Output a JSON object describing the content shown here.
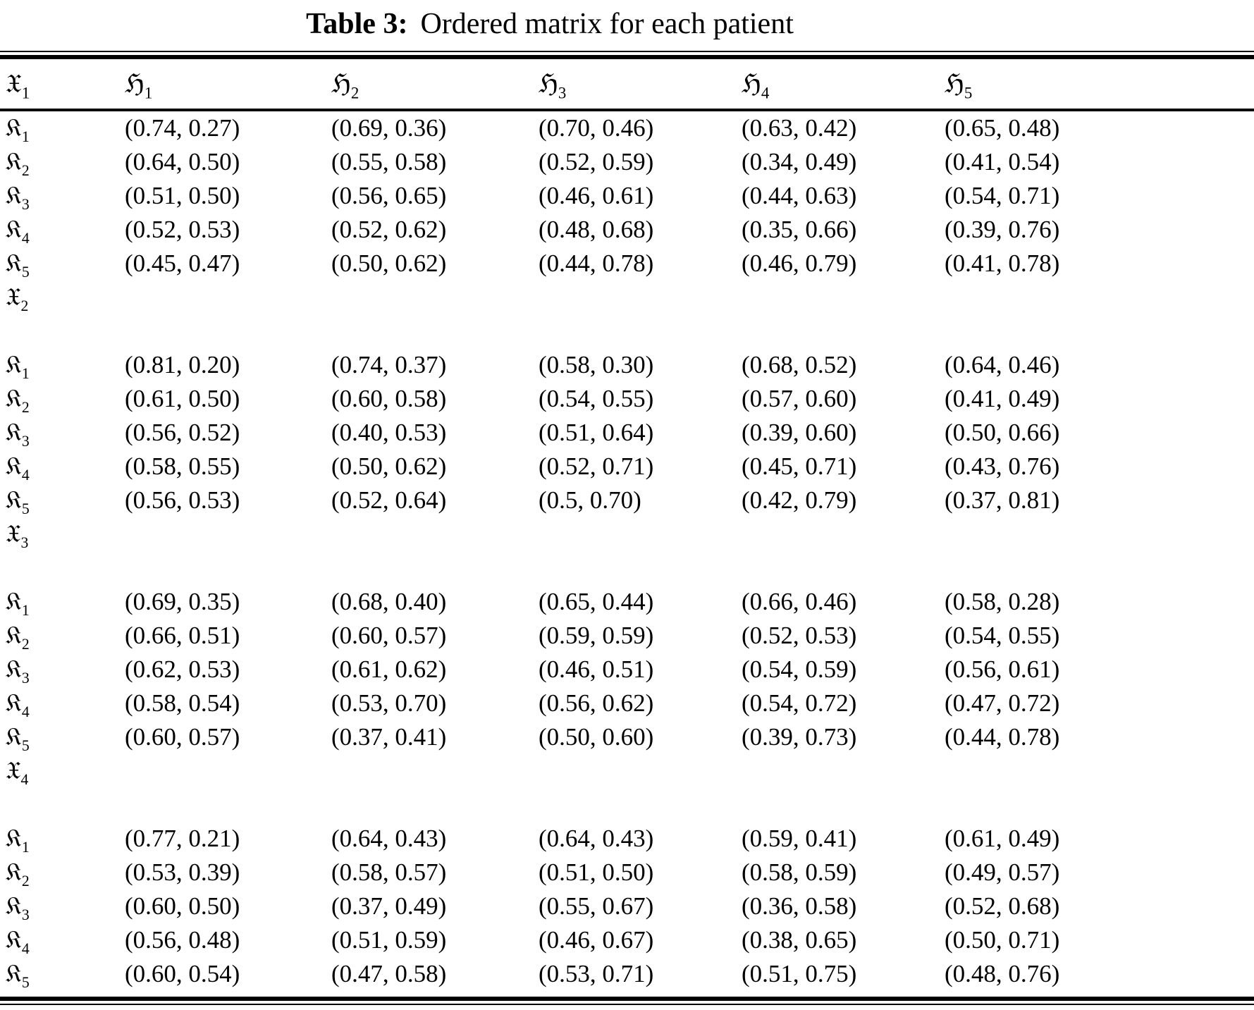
{
  "title": {
    "label": "Table 3:",
    "text": "Ordered matrix for each patient"
  },
  "table": {
    "header": {
      "row_label": {
        "base": "𝔛",
        "sub": "1"
      },
      "columns": [
        {
          "base": "ℌ",
          "sub": "1"
        },
        {
          "base": "ℌ",
          "sub": "2"
        },
        {
          "base": "ℌ",
          "sub": "3"
        },
        {
          "base": "ℌ",
          "sub": "4"
        },
        {
          "base": "ℌ",
          "sub": "5"
        }
      ]
    },
    "sections": [
      {
        "label": {
          "base": "𝔛",
          "sub": "1"
        },
        "label_in_header": true,
        "rows": [
          {
            "label": {
              "base": "𝔎",
              "sub": "1"
            },
            "cells": [
              "(0.74, 0.27)",
              "(0.69, 0.36)",
              "(0.70, 0.46)",
              "(0.63, 0.42)",
              "(0.65, 0.48)"
            ]
          },
          {
            "label": {
              "base": "𝔎",
              "sub": "2"
            },
            "cells": [
              "(0.64, 0.50)",
              "(0.55, 0.58)",
              "(0.52, 0.59)",
              "(0.34, 0.49)",
              "(0.41, 0.54)"
            ]
          },
          {
            "label": {
              "base": "𝔎",
              "sub": "3"
            },
            "cells": [
              "(0.51, 0.50)",
              "(0.56, 0.65)",
              "(0.46, 0.61)",
              "(0.44, 0.63)",
              "(0.54, 0.71)"
            ]
          },
          {
            "label": {
              "base": "𝔎",
              "sub": "4"
            },
            "cells": [
              "(0.52, 0.53)",
              "(0.52, 0.62)",
              "(0.48, 0.68)",
              "(0.35, 0.66)",
              "(0.39, 0.76)"
            ]
          },
          {
            "label": {
              "base": "𝔎",
              "sub": "5"
            },
            "cells": [
              "(0.45, 0.47)",
              "(0.50, 0.62)",
              "(0.44, 0.78)",
              "(0.46, 0.79)",
              "(0.41, 0.78)"
            ]
          }
        ]
      },
      {
        "label": {
          "base": "𝔛",
          "sub": "2"
        },
        "label_in_header": false,
        "rows": [
          {
            "label": {
              "base": "𝔎",
              "sub": "1"
            },
            "cells": [
              "(0.81, 0.20)",
              "(0.74, 0.37)",
              "(0.58, 0.30)",
              "(0.68, 0.52)",
              "(0.64, 0.46)"
            ]
          },
          {
            "label": {
              "base": "𝔎",
              "sub": "2"
            },
            "cells": [
              "(0.61, 0.50)",
              "(0.60, 0.58)",
              "(0.54, 0.55)",
              "(0.57, 0.60)",
              "(0.41, 0.49)"
            ]
          },
          {
            "label": {
              "base": "𝔎",
              "sub": "3"
            },
            "cells": [
              "(0.56, 0.52)",
              "(0.40, 0.53)",
              "(0.51, 0.64)",
              "(0.39, 0.60)",
              "(0.50, 0.66)"
            ]
          },
          {
            "label": {
              "base": "𝔎",
              "sub": "4"
            },
            "cells": [
              "(0.58, 0.55)",
              "(0.50, 0.62)",
              "(0.52, 0.71)",
              "(0.45, 0.71)",
              "(0.43, 0.76)"
            ]
          },
          {
            "label": {
              "base": "𝔎",
              "sub": "5"
            },
            "cells": [
              "(0.56, 0.53)",
              "(0.52, 0.64)",
              "(0.5, 0.70)",
              "(0.42, 0.79)",
              "(0.37, 0.81)"
            ]
          }
        ]
      },
      {
        "label": {
          "base": "𝔛",
          "sub": "3"
        },
        "label_in_header": false,
        "rows": [
          {
            "label": {
              "base": "𝔎",
              "sub": "1"
            },
            "cells": [
              "(0.69, 0.35)",
              "(0.68, 0.40)",
              "(0.65, 0.44)",
              "(0.66, 0.46)",
              "(0.58, 0.28)"
            ]
          },
          {
            "label": {
              "base": "𝔎",
              "sub": "2"
            },
            "cells": [
              "(0.66, 0.51)",
              "(0.60, 0.57)",
              "(0.59, 0.59)",
              "(0.52, 0.53)",
              "(0.54, 0.55)"
            ]
          },
          {
            "label": {
              "base": "𝔎",
              "sub": "3"
            },
            "cells": [
              "(0.62, 0.53)",
              "(0.61, 0.62)",
              "(0.46, 0.51)",
              "(0.54, 0.59)",
              "(0.56, 0.61)"
            ]
          },
          {
            "label": {
              "base": "𝔎",
              "sub": "4"
            },
            "cells": [
              "(0.58, 0.54)",
              "(0.53, 0.70)",
              "(0.56, 0.62)",
              "(0.54, 0.72)",
              "(0.47, 0.72)"
            ]
          },
          {
            "label": {
              "base": "𝔎",
              "sub": "5"
            },
            "cells": [
              "(0.60, 0.57)",
              "(0.37, 0.41)",
              "(0.50, 0.60)",
              "(0.39, 0.73)",
              "(0.44, 0.78)"
            ]
          }
        ]
      },
      {
        "label": {
          "base": "𝔛",
          "sub": "4"
        },
        "label_in_header": false,
        "rows": [
          {
            "label": {
              "base": "𝔎",
              "sub": "1"
            },
            "cells": [
              "(0.77, 0.21)",
              "(0.64, 0.43)",
              "(0.64, 0.43)",
              "(0.59, 0.41)",
              "(0.61, 0.49)"
            ]
          },
          {
            "label": {
              "base": "𝔎",
              "sub": "2"
            },
            "cells": [
              "(0.53, 0.39)",
              "(0.58, 0.57)",
              "(0.51, 0.50)",
              "(0.58, 0.59)",
              "(0.49, 0.57)"
            ]
          },
          {
            "label": {
              "base": "𝔎",
              "sub": "3"
            },
            "cells": [
              "(0.60, 0.50)",
              "(0.37, 0.49)",
              "(0.55, 0.67)",
              "(0.36, 0.58)",
              "(0.52, 0.68)"
            ]
          },
          {
            "label": {
              "base": "𝔎",
              "sub": "4"
            },
            "cells": [
              "(0.56, 0.48)",
              "(0.51, 0.59)",
              "(0.46, 0.67)",
              "(0.38, 0.65)",
              "(0.50, 0.71)"
            ]
          },
          {
            "label": {
              "base": "𝔎",
              "sub": "5"
            },
            "cells": [
              "(0.60, 0.54)",
              "(0.47, 0.58)",
              "(0.53, 0.71)",
              "(0.51, 0.75)",
              "(0.48, 0.76)"
            ]
          }
        ]
      }
    ]
  }
}
